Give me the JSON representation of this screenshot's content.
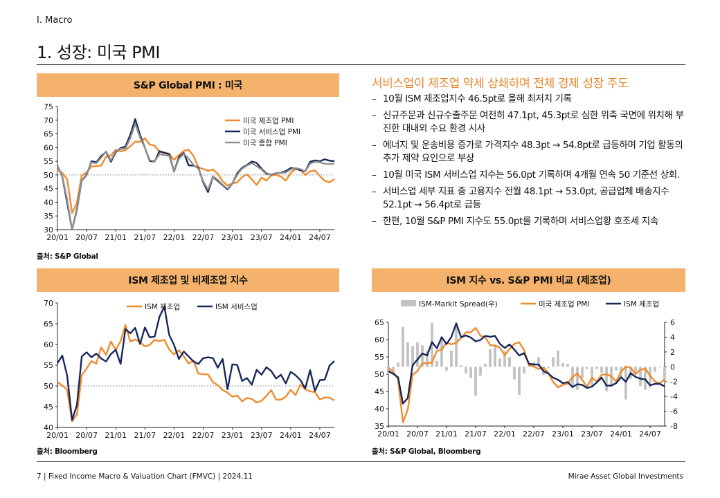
{
  "header": {
    "section": "I. Macro",
    "title": "1. 성장: 미국 PMI"
  },
  "panels": {
    "p1": {
      "title": "S&P Global PMI : 미국",
      "source": "출처: S&P Global"
    },
    "p2": {
      "title": "ISM 제조업 및 비제조업 지수",
      "source": "출처: Bloomberg"
    },
    "p3": {
      "title": "ISM 지수 vs. S&P PMI 비교 (제조업)",
      "source": "출처: S&P Global, Bloomberg"
    }
  },
  "commentary": {
    "headline": "서비스업이 제조업 약세 상쇄하며 전체 경제 성장 주도",
    "bullets": [
      "10월 ISM 제조업지수 46.5pt로 올해 최저치 기록",
      "신규주문과 신규수출주문 여전히 47.1pt, 45.3pt로 심한 위축 국면에 위치해 부진한 대내외 수요 환경 시사",
      "에너지 및 운송비용 증가로 가격지수 48.3pt → 54.8pt로 급등하며 기업 활동의 추가 제약 요인으로 부상",
      "10월 미국 ISM 서비스업 지수는 56.0pt 기록하며 4개월 연속 50 기준선 상회.",
      "서비스업 세부 지표 중 고용지수 전월 48.1pt → 53.0pt, 공급업체 배송지수 52.1pt → 56.4pt로 급등",
      "한편, 10월 S&P PMI 지수도 55.0pt를 기록하며 서비스업황 호조세 지속"
    ]
  },
  "footer": {
    "left": "7 | Fixed Income Macro & Valuation Chart (FMVC) | 2024.11",
    "right": "Mirae Asset Global Investments"
  },
  "colors": {
    "orange": "#f08a2c",
    "navy": "#15285a",
    "gray": "#909090",
    "bar_gray": "#c2c2c2",
    "header_bg": "#f4b26d"
  },
  "chart_data": [
    {
      "type": "line",
      "title": "S&P Global PMI : 미국",
      "x_ticks": [
        "20/01",
        "20/07",
        "21/01",
        "21/07",
        "22/01",
        "22/07",
        "23/01",
        "23/07",
        "24/01",
        "24/07"
      ],
      "ylim": [
        30,
        75
      ],
      "y_ticks": [
        30,
        35,
        40,
        45,
        50,
        55,
        60,
        65,
        70,
        75
      ],
      "reference_line": 50,
      "legend_position": "top-right",
      "series": [
        {
          "name": "미국 제조업 PMI",
          "color": "#f08a2c",
          "values": [
            51.9,
            50.7,
            48.5,
            36.1,
            39.8,
            49.8,
            50.9,
            53.1,
            53.2,
            53.4,
            56.7,
            57.1,
            59.2,
            58.6,
            59.1,
            60.5,
            62.1,
            62.1,
            63.4,
            61.1,
            60.7,
            58.4,
            58.3,
            57.7,
            55.5,
            57.3,
            58.8,
            59.2,
            57.0,
            52.7,
            52.2,
            51.5,
            52.0,
            50.4,
            47.7,
            46.2,
            46.9,
            47.3,
            49.2,
            50.2,
            48.4,
            46.3,
            49.0,
            47.9,
            49.8,
            50.0,
            49.4,
            47.9,
            50.7,
            52.2,
            51.9,
            50.0,
            51.3,
            51.6,
            49.6,
            47.9,
            47.3,
            48.5
          ]
        },
        {
          "name": "미국 서비스업 PMI",
          "color": "#15285a",
          "values": [
            53.4,
            49.4,
            39.8,
            26.7,
            37.5,
            47.9,
            50.0,
            55.0,
            54.6,
            56.9,
            58.4,
            54.8,
            58.3,
            59.8,
            60.4,
            64.7,
            70.4,
            64.6,
            59.9,
            55.1,
            54.9,
            58.7,
            58.0,
            57.6,
            51.2,
            56.5,
            58.0,
            53.5,
            53.4,
            52.7,
            47.3,
            43.7,
            49.3,
            47.8,
            46.2,
            44.7,
            46.8,
            50.6,
            52.6,
            53.6,
            54.9,
            54.4,
            52.3,
            50.5,
            50.1,
            50.6,
            50.8,
            51.4,
            52.5,
            52.3,
            51.7,
            51.3,
            54.8,
            55.3,
            55.0,
            55.7,
            55.2,
            55.0
          ]
        },
        {
          "name": "미국 종합 PMI",
          "color": "#909090",
          "values": [
            53.3,
            49.6,
            40.9,
            27.0,
            37.0,
            47.9,
            50.3,
            54.6,
            54.3,
            56.3,
            58.6,
            55.3,
            58.7,
            59.5,
            59.7,
            63.5,
            68.7,
            63.7,
            59.9,
            55.4,
            55.0,
            57.6,
            57.2,
            57.0,
            51.1,
            55.9,
            57.7,
            56.0,
            53.6,
            52.3,
            47.7,
            44.6,
            49.5,
            48.2,
            46.4,
            45.0,
            46.8,
            50.1,
            52.3,
            53.4,
            54.3,
            53.2,
            52.0,
            50.2,
            50.2,
            50.7,
            50.7,
            50.9,
            52.0,
            52.5,
            52.1,
            51.3,
            54.1,
            54.8,
            54.6,
            54.1,
            54.0,
            54.1
          ]
        }
      ]
    },
    {
      "type": "line",
      "title": "ISM 제조업 및 비제조업 지수",
      "x_ticks": [
        "20/01",
        "20/07",
        "21/01",
        "21/07",
        "22/01",
        "22/07",
        "23/01",
        "23/07",
        "24/01",
        "24/07"
      ],
      "ylim": [
        40,
        70
      ],
      "y_ticks": [
        40,
        45,
        50,
        55,
        60,
        65,
        70
      ],
      "reference_line": 50,
      "legend_position": "top-center",
      "series": [
        {
          "name": "ISM 제조업",
          "color": "#f08a2c",
          "values": [
            50.9,
            50.1,
            49.1,
            41.5,
            43.1,
            52.6,
            54.2,
            56.0,
            55.4,
            59.3,
            57.5,
            60.7,
            58.7,
            60.8,
            64.7,
            60.7,
            61.2,
            60.6,
            59.5,
            59.9,
            61.1,
            60.8,
            61.1,
            58.8,
            57.6,
            58.6,
            57.1,
            55.4,
            56.1,
            53.0,
            52.8,
            52.8,
            50.9,
            50.2,
            49.0,
            48.4,
            47.4,
            47.7,
            46.3,
            47.1,
            46.9,
            46.0,
            46.4,
            47.6,
            49.0,
            46.7,
            46.7,
            47.4,
            49.1,
            47.8,
            50.3,
            49.2,
            48.7,
            48.5,
            46.8,
            47.2,
            47.2,
            46.5
          ]
        },
        {
          "name": "ISM 서비스업",
          "color": "#15285a",
          "values": [
            55.5,
            57.3,
            52.5,
            41.8,
            45.4,
            57.1,
            58.1,
            56.9,
            57.8,
            56.6,
            55.9,
            57.7,
            58.7,
            55.3,
            63.7,
            62.7,
            64.0,
            60.1,
            64.1,
            61.7,
            61.9,
            66.7,
            69.1,
            62.3,
            59.9,
            56.5,
            58.3,
            57.1,
            55.9,
            55.3,
            56.7,
            56.9,
            56.7,
            54.4,
            56.5,
            49.2,
            55.2,
            55.1,
            51.2,
            51.9,
            50.3,
            53.9,
            52.7,
            54.5,
            53.6,
            51.8,
            52.7,
            50.6,
            53.4,
            52.6,
            51.4,
            49.4,
            53.8,
            48.8,
            51.4,
            51.5,
            54.9,
            56.0
          ]
        }
      ]
    },
    {
      "type": "line",
      "title": "ISM 지수 vs. S&P PMI 비교 (제조업)",
      "x_ticks": [
        "20/01",
        "20/07",
        "21/01",
        "21/07",
        "22/01",
        "22/07",
        "23/01",
        "23/07",
        "24/01",
        "24/07"
      ],
      "ylim": [
        35,
        65
      ],
      "y_ticks": [
        35,
        40,
        45,
        50,
        55,
        60,
        65
      ],
      "y2lim": [
        -8,
        6
      ],
      "y2_ticks": [
        -8,
        -6,
        -4,
        -2,
        0,
        2,
        4,
        6
      ],
      "legend_position": "top",
      "bar_series": {
        "name": "ISM-Markit Spread(우)",
        "color": "#c2c2c2",
        "values": [
          -1.0,
          -0.6,
          0.6,
          5.4,
          3.3,
          2.8,
          3.3,
          2.9,
          2.2,
          5.9,
          0.8,
          3.6,
          -0.5,
          2.2,
          5.6,
          0.2,
          -0.9,
          -1.5,
          -3.9,
          -1.2,
          0.4,
          2.4,
          2.8,
          1.1,
          2.1,
          1.3,
          -1.7,
          -3.8,
          -0.9,
          0.3,
          0.6,
          1.3,
          -1.1,
          -0.2,
          1.3,
          2.2,
          0.5,
          0.4,
          -2.9,
          -3.1,
          -1.5,
          -0.3,
          -2.6,
          -0.3,
          -0.8,
          -3.3,
          -2.7,
          -0.5,
          -1.6,
          -4.4,
          -1.6,
          -0.8,
          -2.6,
          -3.1,
          -2.8,
          -0.7,
          -0.1,
          -2.0
        ]
      },
      "series": [
        {
          "name": "미국 제조업 PMI",
          "color": "#f08a2c",
          "values": [
            51.9,
            50.7,
            48.5,
            36.1,
            39.8,
            49.8,
            50.9,
            53.1,
            53.2,
            53.4,
            56.7,
            57.1,
            59.2,
            58.6,
            59.1,
            60.5,
            62.1,
            62.1,
            63.4,
            61.1,
            60.7,
            58.4,
            58.3,
            57.7,
            55.5,
            57.3,
            58.8,
            59.2,
            57.0,
            52.7,
            52.2,
            51.5,
            52.0,
            50.4,
            47.7,
            46.2,
            46.9,
            47.3,
            49.2,
            50.2,
            48.4,
            46.3,
            49.0,
            47.9,
            49.8,
            50.0,
            49.4,
            47.9,
            50.7,
            52.2,
            51.9,
            50.0,
            51.3,
            51.6,
            49.6,
            47.9,
            47.3,
            48.5
          ]
        },
        {
          "name": "ISM 제조업",
          "color": "#15285a",
          "values": [
            50.9,
            50.1,
            49.1,
            41.5,
            43.1,
            52.6,
            54.2,
            56.0,
            55.4,
            59.3,
            57.5,
            60.7,
            58.7,
            60.8,
            64.7,
            60.7,
            61.2,
            60.6,
            59.5,
            59.9,
            61.1,
            60.8,
            61.1,
            58.8,
            57.6,
            58.6,
            57.1,
            55.4,
            56.1,
            53.0,
            52.8,
            52.8,
            50.9,
            50.2,
            49.0,
            48.4,
            47.4,
            47.7,
            46.3,
            47.1,
            46.9,
            46.0,
            46.4,
            47.6,
            49.0,
            46.7,
            46.7,
            47.4,
            49.1,
            47.8,
            50.3,
            49.2,
            48.7,
            48.5,
            46.8,
            47.2,
            47.2,
            46.5
          ]
        }
      ]
    }
  ]
}
